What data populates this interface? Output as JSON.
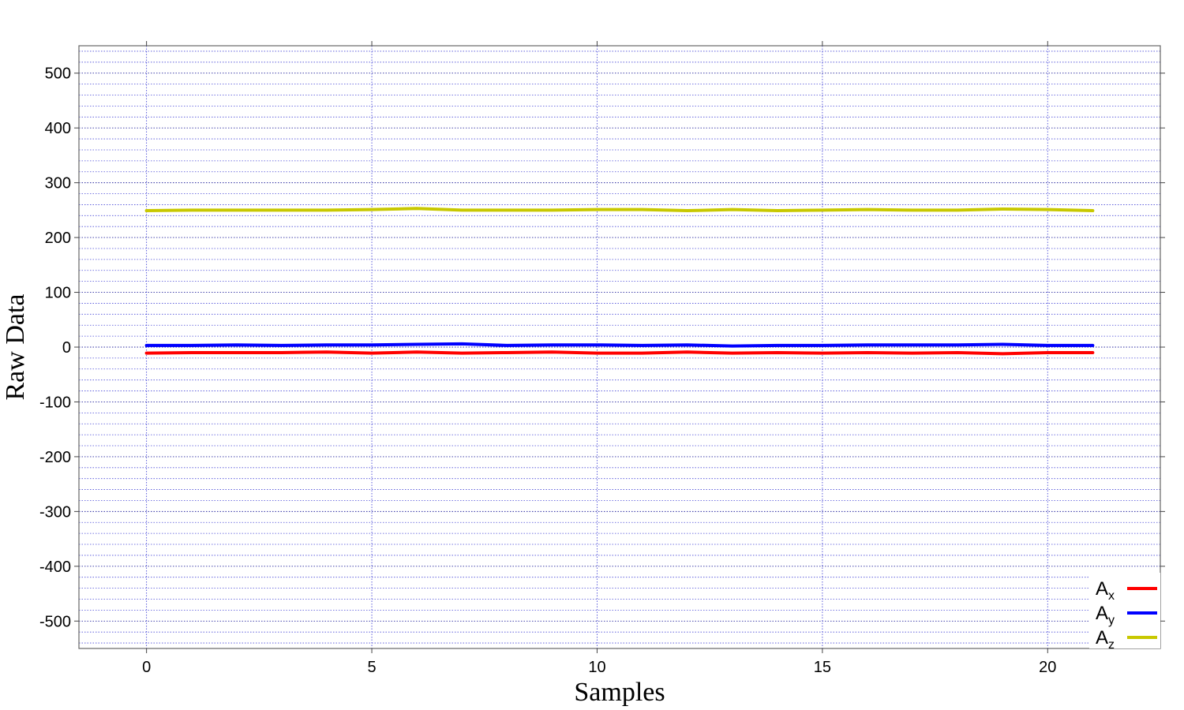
{
  "chart_data": {
    "type": "line",
    "title": "",
    "xlabel": "Samples",
    "ylabel": "Raw Data",
    "xlim": [
      -1.5,
      22.5
    ],
    "ylim": [
      -550,
      550
    ],
    "x_ticks": [
      0,
      5,
      10,
      15,
      20
    ],
    "y_ticks": [
      -500,
      -400,
      -300,
      -200,
      -100,
      0,
      100,
      200,
      300,
      400,
      500
    ],
    "grid": true,
    "legend_position": "bottom-right",
    "x": [
      0,
      1,
      2,
      3,
      4,
      5,
      6,
      7,
      8,
      9,
      10,
      11,
      12,
      13,
      14,
      15,
      16,
      17,
      18,
      19,
      20,
      21
    ],
    "series": [
      {
        "name": "A",
        "subscript": "x",
        "color": "#ff0000",
        "values": [
          -11,
          -10,
          -10,
          -10,
          -9,
          -11,
          -9,
          -11,
          -10,
          -9,
          -11,
          -11,
          -9,
          -11,
          -10,
          -11,
          -10,
          -11,
          -10,
          -12,
          -10,
          -10
        ]
      },
      {
        "name": "A",
        "subscript": "y",
        "color": "#0000ff",
        "values": [
          3,
          3,
          4,
          3,
          4,
          4,
          5,
          6,
          3,
          4,
          4,
          3,
          4,
          2,
          3,
          3,
          4,
          4,
          4,
          5,
          3,
          3
        ]
      },
      {
        "name": "A",
        "subscript": "z",
        "color": "#c8c800",
        "values": [
          249,
          250,
          250,
          250,
          250,
          251,
          253,
          250,
          250,
          250,
          251,
          251,
          249,
          251,
          249,
          250,
          251,
          250,
          250,
          252,
          251,
          249
        ]
      }
    ]
  }
}
